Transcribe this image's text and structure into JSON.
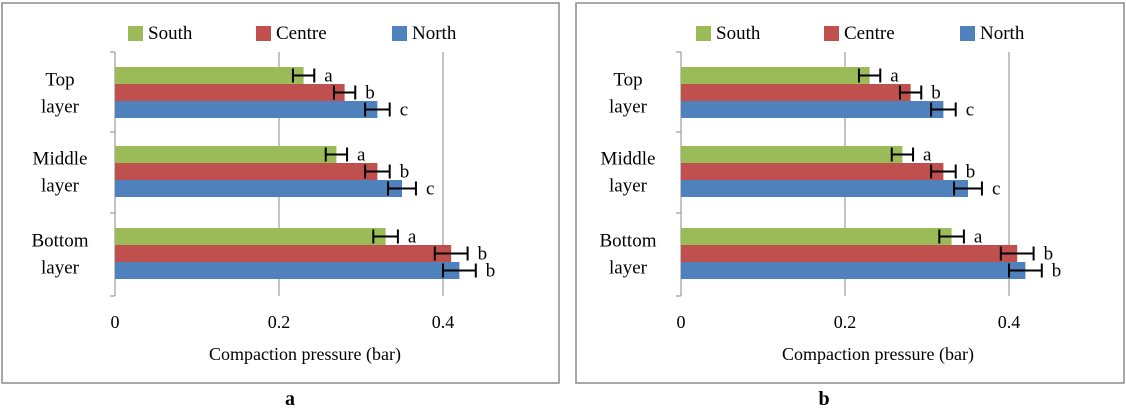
{
  "chart_data": [
    {
      "type": "bar",
      "orientation": "horizontal",
      "panel_label": "a",
      "categories": [
        "Top layer",
        "Middle layer",
        "Bottom layer"
      ],
      "category_lines": [
        [
          "Top",
          "layer"
        ],
        [
          "Middle",
          "layer"
        ],
        [
          "Bottom",
          "layer"
        ]
      ],
      "series": [
        {
          "name": "South",
          "color": "#9BBB59",
          "values": [
            0.23,
            0.27,
            0.33
          ],
          "errors": [
            0.013,
            0.013,
            0.015
          ],
          "letters": [
            "a",
            "a",
            "a"
          ]
        },
        {
          "name": "Centre",
          "color": "#C0504D",
          "values": [
            0.28,
            0.32,
            0.41
          ],
          "errors": [
            0.013,
            0.015,
            0.02
          ],
          "letters": [
            "b",
            "b",
            "b"
          ]
        },
        {
          "name": "North",
          "color": "#4F81BD",
          "values": [
            0.32,
            0.35,
            0.42
          ],
          "errors": [
            0.015,
            0.017,
            0.02
          ],
          "letters": [
            "c",
            "c",
            "b"
          ]
        }
      ],
      "legend_order": [
        "South",
        "Centre",
        "North"
      ],
      "legend_position": "top",
      "xlabel": "Compaction pressure (bar)",
      "xlim": [
        0,
        0.5
      ],
      "xticks": [
        "0",
        "0.2",
        "0.4"
      ],
      "xtick_values": [
        0,
        0.2,
        0.4
      ],
      "grid": "vertical major gridlines"
    },
    {
      "type": "bar",
      "orientation": "horizontal",
      "panel_label": "b",
      "categories": [
        "Top layer",
        "Middle layer",
        "Bottom layer"
      ],
      "category_lines": [
        [
          "Top",
          "layer"
        ],
        [
          "Middle",
          "layer"
        ],
        [
          "Bottom",
          "layer"
        ]
      ],
      "series": [
        {
          "name": "South",
          "color": "#9BBB59",
          "values": [
            0.23,
            0.27,
            0.33
          ],
          "errors": [
            0.013,
            0.013,
            0.015
          ],
          "letters": [
            "a",
            "a",
            "a"
          ]
        },
        {
          "name": "Centre",
          "color": "#C0504D",
          "values": [
            0.28,
            0.32,
            0.41
          ],
          "errors": [
            0.013,
            0.015,
            0.02
          ],
          "letters": [
            "b",
            "b",
            "b"
          ]
        },
        {
          "name": "North",
          "color": "#4F81BD",
          "values": [
            0.32,
            0.35,
            0.42
          ],
          "errors": [
            0.015,
            0.017,
            0.02
          ],
          "letters": [
            "c",
            "c",
            "b"
          ]
        }
      ],
      "legend_order": [
        "South",
        "Centre",
        "North"
      ],
      "legend_position": "top",
      "xlabel": "Compaction pressure (bar)",
      "xlim": [
        0,
        0.5
      ],
      "xticks": [
        "0",
        "0.2",
        "0.4"
      ],
      "xtick_values": [
        0,
        0.2,
        0.4
      ],
      "grid": "vertical major gridlines"
    }
  ]
}
